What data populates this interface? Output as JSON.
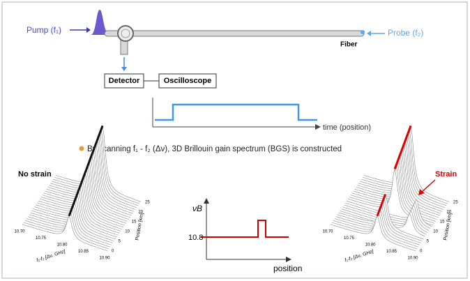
{
  "top": {
    "pump_label": "Pump (f₁)",
    "probe_label": "Probe (f₂)",
    "fiber_label": "Fiber",
    "detector": "Detector",
    "oscilloscope": "Oscilloscope",
    "time_axis_label": "time (position)"
  },
  "caption": "By scanning f₁ - f₂ (Δν), 3D Brillouin gain spectrum (BGS) is constructed",
  "plots": [
    {
      "title": "No strain",
      "x_ticks": [
        "10.70",
        "10.75",
        "10.80",
        "10.85",
        "10.90"
      ],
      "x_label": "f₁-f₂ [Δν, GHz]",
      "y_ticks": [
        "0",
        "5",
        "10",
        "15",
        "20",
        "25"
      ],
      "y_label": "Position [km]"
    },
    {
      "title": "Strain",
      "x_ticks": [
        "10.70",
        "10.75",
        "10.80",
        "10.85",
        "10.90"
      ],
      "x_label": "f₁-f₂ [Δν, GHz]",
      "y_ticks": [
        "0",
        "5",
        "10",
        "15",
        "20",
        "25"
      ],
      "y_label": "Position [km]"
    }
  ],
  "profile": {
    "y_label": "νB",
    "y_value": "10.8",
    "x_label": "position"
  }
}
